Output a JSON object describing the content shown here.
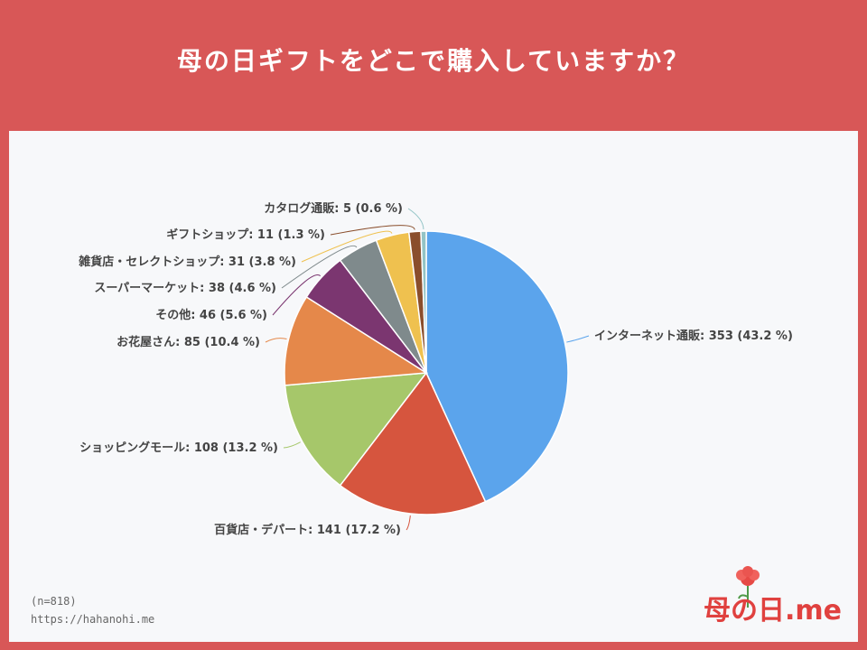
{
  "title": "母の日ギフトをどこで購入していますか？",
  "footnote_n": "(n=818)",
  "footnote_url": "https://hahanohi.me",
  "logo": "母の日.me",
  "colors": {
    "background": "#d85757",
    "panel": "#f7f8fa"
  },
  "chart_data": {
    "type": "pie",
    "title": "母の日ギフトをどこで購入していますか？",
    "slices": [
      {
        "label": "インターネット通販",
        "value": 353,
        "percent": 43.2,
        "color": "#5ba4ec",
        "text": "インターネット通販: 353 (43.2 %)"
      },
      {
        "label": "百貨店・デパート",
        "value": 141,
        "percent": 17.2,
        "color": "#d6553e",
        "text": "百貨店・デパート: 141 (17.2 %)"
      },
      {
        "label": "ショッピングモール",
        "value": 108,
        "percent": 13.2,
        "color": "#a6c76a",
        "text": "ショッピングモール: 108 (13.2 %)"
      },
      {
        "label": "お花屋さん",
        "value": 85,
        "percent": 10.4,
        "color": "#e5884a",
        "text": "お花屋さん: 85 (10.4 %)"
      },
      {
        "label": "その他",
        "value": 46,
        "percent": 5.6,
        "color": "#7b3670",
        "text": "その他: 46 (5.6 %)"
      },
      {
        "label": "スーパーマーケット",
        "value": 38,
        "percent": 4.6,
        "color": "#7f8a8c",
        "text": "スーパーマーケット: 38 (4.6 %)"
      },
      {
        "label": "雑貨店・セレクトショップ",
        "value": 31,
        "percent": 3.8,
        "color": "#efc14f",
        "text": "雑貨店・セレクトショップ: 31 (3.8 %)"
      },
      {
        "label": "ギフトショップ",
        "value": 11,
        "percent": 1.3,
        "color": "#8a4e2c",
        "text": "ギフトショップ: 11 (1.3 %)"
      },
      {
        "label": "カタログ通販",
        "value": 5,
        "percent": 0.6,
        "color": "#93c4c6",
        "text": "カタログ通販: 5 (0.6 %)"
      }
    ]
  }
}
